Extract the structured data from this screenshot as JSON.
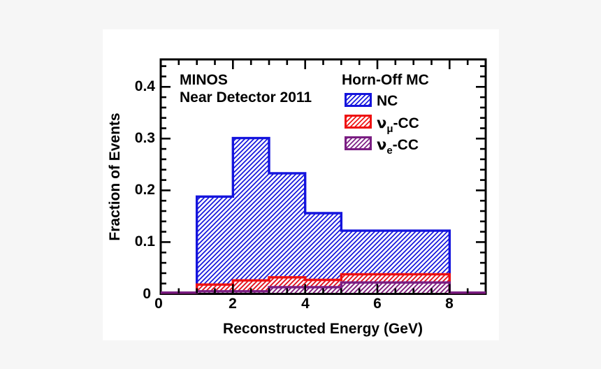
{
  "page": {
    "background_color": "#f6f6f6",
    "canvas_color": "#ffffff",
    "axis_color": "#000000"
  },
  "annotations": {
    "line1": "MINOS",
    "line2": "Near Detector 2011"
  },
  "legend": {
    "title": "Horn-Off MC",
    "entries": [
      {
        "label": "NC"
      },
      {
        "nu": "ν",
        "sub": "μ",
        "suffix": "-CC"
      },
      {
        "nu": "ν",
        "sub": "e",
        "suffix": "-CC"
      }
    ]
  },
  "chart_data": {
    "type": "bar",
    "subtype": "step-histogram",
    "title": "",
    "xlabel": "Reconstructed Energy (GeV)",
    "ylabel": "Fraction of Events",
    "xlim": [
      0,
      9
    ],
    "ylim": [
      0,
      0.453
    ],
    "grid": false,
    "legend_position": "top-right-inside",
    "x_major_ticks": [
      0,
      2,
      4,
      6,
      8
    ],
    "x_tick_labels": [
      "0",
      "2",
      "4",
      "6",
      "8"
    ],
    "x_minor_step": 0.5,
    "y_major_ticks": [
      0,
      0.1,
      0.2,
      0.3,
      0.4
    ],
    "y_tick_labels": [
      "0",
      "0.1",
      "0.2",
      "0.3",
      "0.4"
    ],
    "y_minor_step": 0.02,
    "bin_edges": [
      1,
      2,
      3,
      4,
      5,
      8
    ],
    "baseline_extent": [
      0,
      9
    ],
    "series": [
      {
        "name": "NC",
        "color": "#1414dd",
        "hatch": "diagonal",
        "values": [
          0.188,
          0.301,
          0.233,
          0.156,
          0.122
        ]
      },
      {
        "name": "νμ-CC",
        "color": "#ee1111",
        "hatch": "diagonal",
        "values": [
          0.018,
          0.026,
          0.032,
          0.027,
          0.038
        ]
      },
      {
        "name": "νe-CC",
        "color": "#7a1d82",
        "hatch": "diagonal",
        "values": [
          0.005,
          0.005,
          0.013,
          0.013,
          0.022
        ]
      }
    ]
  }
}
